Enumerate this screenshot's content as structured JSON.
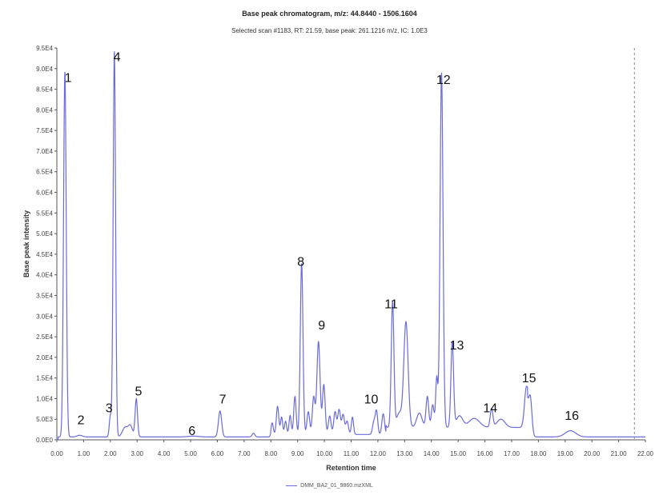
{
  "chart_data": {
    "type": "line",
    "title": "Base peak chromatogram, m/z: 44.8440 - 1506.1604",
    "subtitle": "Selected scan #1183, RT: 21.59, base peak: 261.1216 m/z, IC: 1.0E3",
    "xlabel": "Retention time",
    "ylabel": "Base peak intensity",
    "xlim": [
      0,
      22
    ],
    "ylim": [
      0,
      95000
    ],
    "x_ticks": [
      "0.00",
      "1.00",
      "2.00",
      "3.00",
      "4.00",
      "5.00",
      "6.00",
      "7.00",
      "8.00",
      "9.00",
      "10.00",
      "11.00",
      "12.00",
      "13.00",
      "14.00",
      "15.00",
      "16.00",
      "17.00",
      "18.00",
      "19.00",
      "20.00",
      "21.00",
      "22.00"
    ],
    "y_ticks": [
      {
        "value": 0,
        "label": "0.0E0"
      },
      {
        "value": 5000,
        "label": "5.0E3"
      },
      {
        "value": 10000,
        "label": "1.0E4"
      },
      {
        "value": 15000,
        "label": "1.5E4"
      },
      {
        "value": 20000,
        "label": "2.0E4"
      },
      {
        "value": 25000,
        "label": "2.5E4"
      },
      {
        "value": 30000,
        "label": "3.0E4"
      },
      {
        "value": 35000,
        "label": "3.5E4"
      },
      {
        "value": 40000,
        "label": "4.0E4"
      },
      {
        "value": 45000,
        "label": "4.5E4"
      },
      {
        "value": 50000,
        "label": "5.0E4"
      },
      {
        "value": 55000,
        "label": "5.5E4"
      },
      {
        "value": 60000,
        "label": "6.0E4"
      },
      {
        "value": 65000,
        "label": "6.5E4"
      },
      {
        "value": 70000,
        "label": "7.0E4"
      },
      {
        "value": 75000,
        "label": "7.5E4"
      },
      {
        "value": 80000,
        "label": "8.0E4"
      },
      {
        "value": 85000,
        "label": "8.5E4"
      },
      {
        "value": 90000,
        "label": "9.0E4"
      },
      {
        "value": 95000,
        "label": "9.5E4"
      }
    ],
    "grid": false,
    "legend": {
      "position": "bottom",
      "entries": [
        "DMM_BA2_01_9860.mzXML"
      ]
    },
    "line_color": "#6b6bdc",
    "reference_line": {
      "x": 21.59,
      "style": "dashed"
    },
    "baseline_level": 700,
    "peaks": [
      {
        "x": 0.3,
        "y": 88500,
        "w": 0.05
      },
      {
        "x": 0.85,
        "y": 400,
        "w": 0.1
      },
      {
        "x": 2.0,
        "y": 5000,
        "w": 0.04
      },
      {
        "x": 2.15,
        "y": 93500,
        "w": 0.045
      },
      {
        "x": 2.55,
        "y": 2300,
        "w": 0.1
      },
      {
        "x": 2.75,
        "y": 2600,
        "w": 0.08
      },
      {
        "x": 2.97,
        "y": 9200,
        "w": 0.045
      },
      {
        "x": 5.1,
        "y": 200,
        "w": 0.2
      },
      {
        "x": 6.1,
        "y": 6300,
        "w": 0.06
      },
      {
        "x": 7.35,
        "y": 900,
        "w": 0.05
      },
      {
        "x": 8.05,
        "y": 2800,
        "w": 0.04
      },
      {
        "x": 8.25,
        "y": 6800,
        "w": 0.045
      },
      {
        "x": 8.4,
        "y": 4200,
        "w": 0.04
      },
      {
        "x": 8.55,
        "y": 3200,
        "w": 0.04
      },
      {
        "x": 8.72,
        "y": 4600,
        "w": 0.04
      },
      {
        "x": 8.9,
        "y": 9200,
        "w": 0.045
      },
      {
        "x": 9.15,
        "y": 41500,
        "w": 0.05
      },
      {
        "x": 9.4,
        "y": 5500,
        "w": 0.05
      },
      {
        "x": 9.6,
        "y": 9000,
        "w": 0.05
      },
      {
        "x": 9.78,
        "y": 22500,
        "w": 0.06
      },
      {
        "x": 9.98,
        "y": 12000,
        "w": 0.05
      },
      {
        "x": 10.2,
        "y": 4500,
        "w": 0.05
      },
      {
        "x": 10.4,
        "y": 5500,
        "w": 0.05
      },
      {
        "x": 10.55,
        "y": 6000,
        "w": 0.05
      },
      {
        "x": 10.7,
        "y": 4800,
        "w": 0.05
      },
      {
        "x": 10.85,
        "y": 3200,
        "w": 0.05
      },
      {
        "x": 11.05,
        "y": 4200,
        "w": 0.04
      },
      {
        "x": 11.85,
        "y": 3000,
        "w": 0.05
      },
      {
        "x": 11.95,
        "y": 5500,
        "w": 0.045
      },
      {
        "x": 12.2,
        "y": 5000,
        "w": 0.05
      },
      {
        "x": 12.55,
        "y": 30500,
        "w": 0.05
      },
      {
        "x": 12.8,
        "y": 3500,
        "w": 0.1
      },
      {
        "x": 13.05,
        "y": 25500,
        "w": 0.08
      },
      {
        "x": 13.55,
        "y": 3500,
        "w": 0.1
      },
      {
        "x": 13.85,
        "y": 7500,
        "w": 0.05
      },
      {
        "x": 14.05,
        "y": 5500,
        "w": 0.05
      },
      {
        "x": 14.2,
        "y": 12000,
        "w": 0.04
      },
      {
        "x": 14.38,
        "y": 86000,
        "w": 0.055
      },
      {
        "x": 14.78,
        "y": 20500,
        "w": 0.05
      },
      {
        "x": 15.05,
        "y": 2800,
        "w": 0.12
      },
      {
        "x": 15.6,
        "y": 2200,
        "w": 0.2
      },
      {
        "x": 16.25,
        "y": 4500,
        "w": 0.05
      },
      {
        "x": 16.6,
        "y": 2000,
        "w": 0.15
      },
      {
        "x": 17.55,
        "y": 9500,
        "w": 0.07
      },
      {
        "x": 17.7,
        "y": 9000,
        "w": 0.06
      },
      {
        "x": 19.2,
        "y": 1500,
        "w": 0.2
      }
    ],
    "annotations": [
      {
        "label": "1",
        "x": 0.42,
        "y": 86800
      },
      {
        "label": "2",
        "x": 0.9,
        "y": 3800
      },
      {
        "label": "3",
        "x": 1.95,
        "y": 6700
      },
      {
        "label": "4",
        "x": 2.25,
        "y": 91800
      },
      {
        "label": "5",
        "x": 3.05,
        "y": 10800
      },
      {
        "label": "6",
        "x": 5.05,
        "y": 1200
      },
      {
        "label": "7",
        "x": 6.2,
        "y": 8800
      },
      {
        "label": "8",
        "x": 9.12,
        "y": 42200
      },
      {
        "label": "9",
        "x": 9.9,
        "y": 26800
      },
      {
        "label": "10",
        "x": 11.75,
        "y": 8800
      },
      {
        "label": "11",
        "x": 12.5,
        "y": 31900
      },
      {
        "label": "12",
        "x": 14.45,
        "y": 86300
      },
      {
        "label": "13",
        "x": 14.95,
        "y": 21900
      },
      {
        "label": "14",
        "x": 16.2,
        "y": 6700
      },
      {
        "label": "15",
        "x": 17.65,
        "y": 14000
      },
      {
        "label": "16",
        "x": 19.25,
        "y": 4800
      }
    ]
  }
}
